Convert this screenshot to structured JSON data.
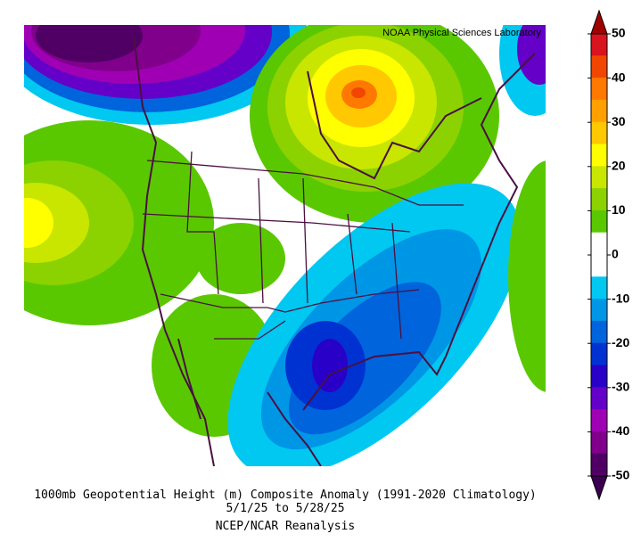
{
  "header": {
    "credit": "NOAA Physical Sciences Laboratory"
  },
  "caption": {
    "line1": "1000mb Geopotential Height (m) Composite Anomaly (1991-2020 Climatology)",
    "line2": "5/1/25  to 5/28/25",
    "line3": "NCEP/NCAR Reanalysis"
  },
  "colorbar": {
    "ticks": [
      50,
      40,
      30,
      20,
      10,
      0,
      -10,
      -20,
      -30,
      -40,
      -50
    ],
    "over_color": "#a00000",
    "under_color": "#3c0050",
    "band_colors": [
      "#d8141e",
      "#f04600",
      "#ff7800",
      "#ffa000",
      "#ffc800",
      "#ffff00",
      "#c8e600",
      "#8cd200",
      "#5ac800",
      "#ffffff",
      "#ffffff",
      "#00c8f0",
      "#0096e6",
      "#0064dc",
      "#0032d2",
      "#2800c8",
      "#6400c8",
      "#a000b4",
      "#80008c",
      "#500064"
    ]
  }
}
